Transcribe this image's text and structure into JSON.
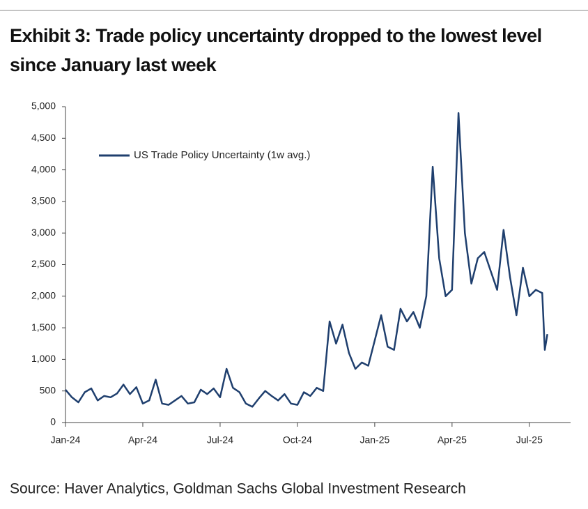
{
  "chart_data": {
    "type": "line",
    "title": "Exhibit 3: Trade policy uncertainty dropped to the lowest level since January last week",
    "source": "Source: Haver Analytics, Goldman Sachs Global Investment Research",
    "series": [
      {
        "name": "US Trade Policy Uncertainty (1w avg.)",
        "color": "#1f3f6e",
        "x": [
          0,
          0.25,
          0.5,
          0.75,
          1,
          1.25,
          1.5,
          1.75,
          2,
          2.25,
          2.5,
          2.75,
          3,
          3.25,
          3.5,
          3.75,
          4,
          4.25,
          4.5,
          4.75,
          5,
          5.25,
          5.5,
          5.75,
          6,
          6.25,
          6.5,
          6.75,
          7,
          7.25,
          7.5,
          7.75,
          8,
          8.25,
          8.5,
          8.75,
          9,
          9.25,
          9.5,
          9.75,
          10,
          10.25,
          10.5,
          10.75,
          11,
          11.25,
          11.5,
          11.75,
          12,
          12.25,
          12.5,
          12.75,
          13,
          13.25,
          13.5,
          13.75,
          14,
          14.25,
          14.5,
          14.75,
          15,
          15.25,
          15.5,
          15.75,
          16,
          16.25,
          16.5,
          16.75,
          17,
          17.25,
          17.5,
          17.75,
          18,
          18.25,
          18.5,
          18.6,
          18.7
        ],
        "values": [
          520,
          400,
          320,
          480,
          540,
          350,
          420,
          400,
          460,
          600,
          450,
          560,
          300,
          350,
          680,
          300,
          280,
          350,
          420,
          300,
          320,
          520,
          450,
          540,
          400,
          850,
          550,
          480,
          300,
          250,
          380,
          500,
          420,
          350,
          450,
          300,
          280,
          480,
          420,
          550,
          500,
          1600,
          1250,
          1550,
          1100,
          850,
          950,
          900,
          1300,
          1700,
          1200,
          1150,
          1800,
          1600,
          1750,
          1500,
          2000,
          4050,
          2600,
          2000,
          2100,
          4900,
          3000,
          2200,
          2600,
          2700,
          2400,
          2100,
          3050,
          2300,
          1700,
          2450,
          2000,
          2100,
          2050,
          1150,
          1400
        ]
      }
    ],
    "xlim": [
      0,
      19.6
    ],
    "xticks": [
      {
        "value": 0,
        "label": "Jan-24"
      },
      {
        "value": 3,
        "label": "Apr-24"
      },
      {
        "value": 6,
        "label": "Jul-24"
      },
      {
        "value": 9,
        "label": "Oct-24"
      },
      {
        "value": 12,
        "label": "Jan-25"
      },
      {
        "value": 15,
        "label": "Apr-25"
      },
      {
        "value": 18,
        "label": "Jul-25"
      }
    ],
    "ylim": [
      0,
      5000
    ],
    "yticks": [
      0,
      {
        "value": 500,
        "label": "500"
      },
      {
        "value": 1000,
        "label": "1,000"
      },
      {
        "value": 1500,
        "label": "1,500"
      },
      {
        "value": 2000,
        "label": "2,000"
      },
      {
        "value": 2500,
        "label": "2,500"
      },
      {
        "value": 3000,
        "label": "3,000"
      },
      {
        "value": 3500,
        "label": "3,500"
      },
      {
        "value": 4000,
        "label": "4,000"
      },
      {
        "value": 4500,
        "label": "4,500"
      },
      {
        "value": 5000,
        "label": "5,000"
      }
    ],
    "grid": false,
    "legend": "upper left"
  }
}
